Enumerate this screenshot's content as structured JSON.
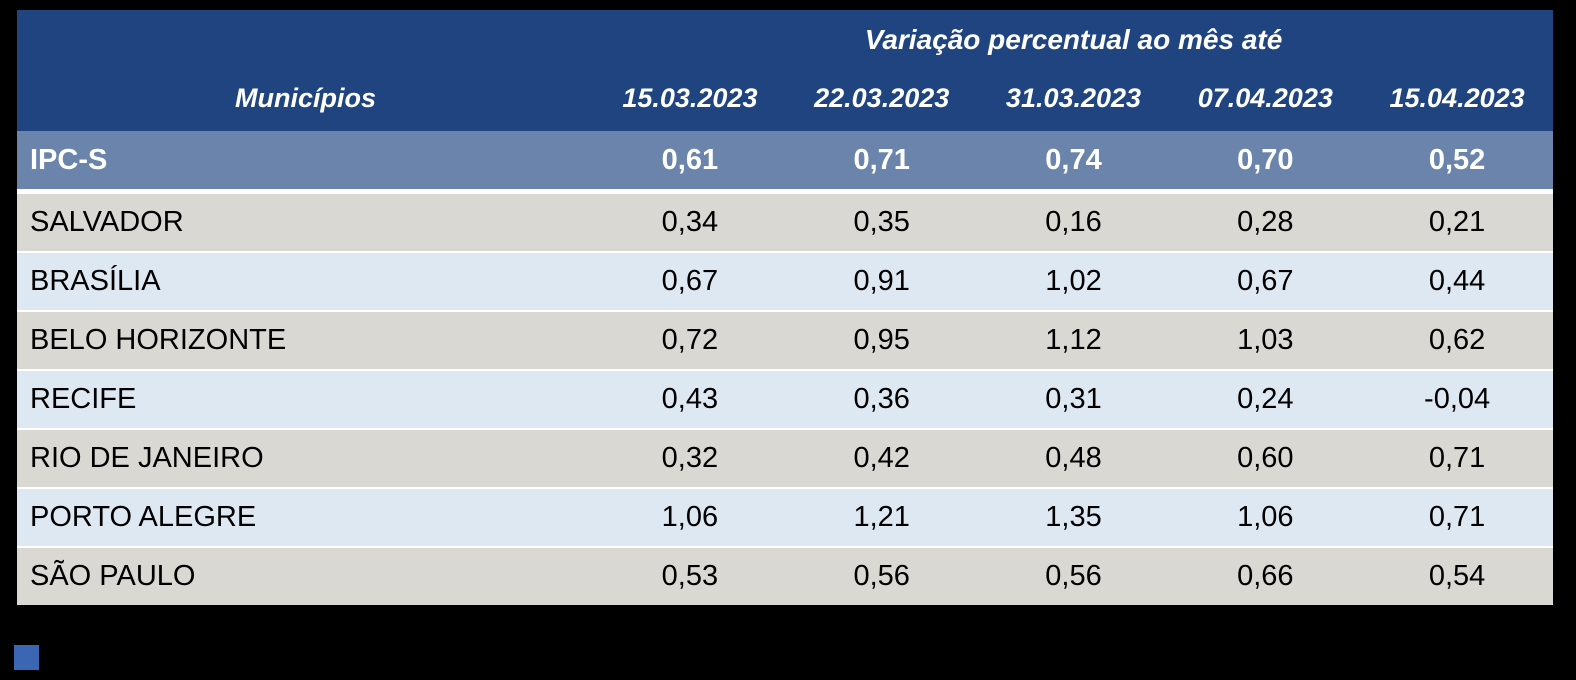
{
  "chart_data": {
    "type": "table",
    "title": "Variação percentual ao mês até",
    "row_header_label": "Municípios",
    "columns": [
      "15.03.2023",
      "22.03.2023",
      "31.03.2023",
      "07.04.2023",
      "15.04.2023"
    ],
    "summary_row": {
      "label": "IPC-S",
      "values": [
        "0,61",
        "0,71",
        "0,74",
        "0,70",
        "0,52"
      ]
    },
    "rows": [
      {
        "label": "SALVADOR",
        "values": [
          "0,34",
          "0,35",
          "0,16",
          "0,28",
          "0,21"
        ]
      },
      {
        "label": "BRASÍLIA",
        "values": [
          "0,67",
          "0,91",
          "1,02",
          "0,67",
          "0,44"
        ]
      },
      {
        "label": "BELO HORIZONTE",
        "values": [
          "0,72",
          "0,95",
          "1,12",
          "1,03",
          "0,62"
        ]
      },
      {
        "label": "RECIFE",
        "values": [
          "0,43",
          "0,36",
          "0,31",
          "0,24",
          "-0,04"
        ]
      },
      {
        "label": "RIO DE JANEIRO",
        "values": [
          "0,32",
          "0,42",
          "0,48",
          "0,60",
          "0,71"
        ]
      },
      {
        "label": "PORTO ALEGRE",
        "values": [
          "1,06",
          "1,21",
          "1,35",
          "1,06",
          "0,71"
        ]
      },
      {
        "label": "SÃO PAULO",
        "values": [
          "0,53",
          "0,56",
          "0,56",
          "0,66",
          "0,54"
        ]
      }
    ]
  },
  "colors": {
    "background": "#000000",
    "header_bg": "#1F4480",
    "header_text": "#FFFFFF",
    "summary_bg": "#6B84AB",
    "row_gray": "#D9D8D2",
    "row_blue": "#DEE8F2",
    "body_text": "#000000",
    "accent_square": "#3A66B4"
  }
}
